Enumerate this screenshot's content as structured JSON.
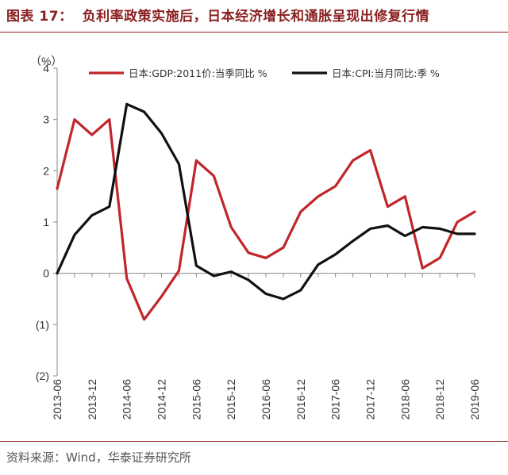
{
  "header": {
    "figure_number": "图表 17：",
    "title": "负利率政策实施后，日本经济增长和通胀呈现出修复行情"
  },
  "source": "资料来源：Wind，华泰证券研究所",
  "colors": {
    "gdp": "#c0262a",
    "cpi": "#111111",
    "title": "#8a1f1f"
  },
  "chart_data": {
    "type": "line",
    "title": "负利率政策实施后，日本经济增长和通胀呈现出修复行情",
    "xlabel": "",
    "ylabel": "（%）",
    "ylim": [
      -2,
      4
    ],
    "y_ticks": [
      "4",
      "3",
      "2",
      "1",
      "0",
      "(1)",
      "(2)"
    ],
    "y_tick_values": [
      4,
      3,
      2,
      1,
      0,
      -1,
      -2
    ],
    "x_tick_labels": [
      "2013-06",
      "2013-12",
      "2014-06",
      "2014-12",
      "2015-06",
      "2015-12",
      "2016-06",
      "2016-12",
      "2017-06",
      "2017-12",
      "2018-06",
      "2018-12",
      "2019-06"
    ],
    "x_quarters": [
      "2013-06",
      "2013-09",
      "2013-12",
      "2014-03",
      "2014-06",
      "2014-09",
      "2014-12",
      "2015-03",
      "2015-06",
      "2015-09",
      "2015-12",
      "2016-03",
      "2016-06",
      "2016-09",
      "2016-12",
      "2017-03",
      "2017-06",
      "2017-09",
      "2017-12",
      "2018-03",
      "2018-06",
      "2018-09",
      "2018-12",
      "2019-03",
      "2019-06"
    ],
    "legend": "top",
    "grid": false,
    "series": [
      {
        "name": "日本:GDP:2011价:当季同比 %",
        "values": [
          1.65,
          3.0,
          2.7,
          3.0,
          -0.1,
          -0.9,
          -0.45,
          0.05,
          2.2,
          1.9,
          0.9,
          0.4,
          0.3,
          0.5,
          1.2,
          1.5,
          1.7,
          2.2,
          2.4,
          1.3,
          1.5,
          0.1,
          0.3,
          1.0,
          1.2
        ]
      },
      {
        "name": "日本:CPI:当月同比:季 %",
        "values": [
          0.0,
          0.75,
          1.13,
          1.3,
          3.3,
          3.15,
          2.73,
          2.13,
          0.15,
          -0.05,
          0.03,
          -0.13,
          -0.4,
          -0.5,
          -0.33,
          0.17,
          0.37,
          0.63,
          0.87,
          0.93,
          0.73,
          0.9,
          0.87,
          0.77,
          0.77
        ]
      }
    ]
  }
}
